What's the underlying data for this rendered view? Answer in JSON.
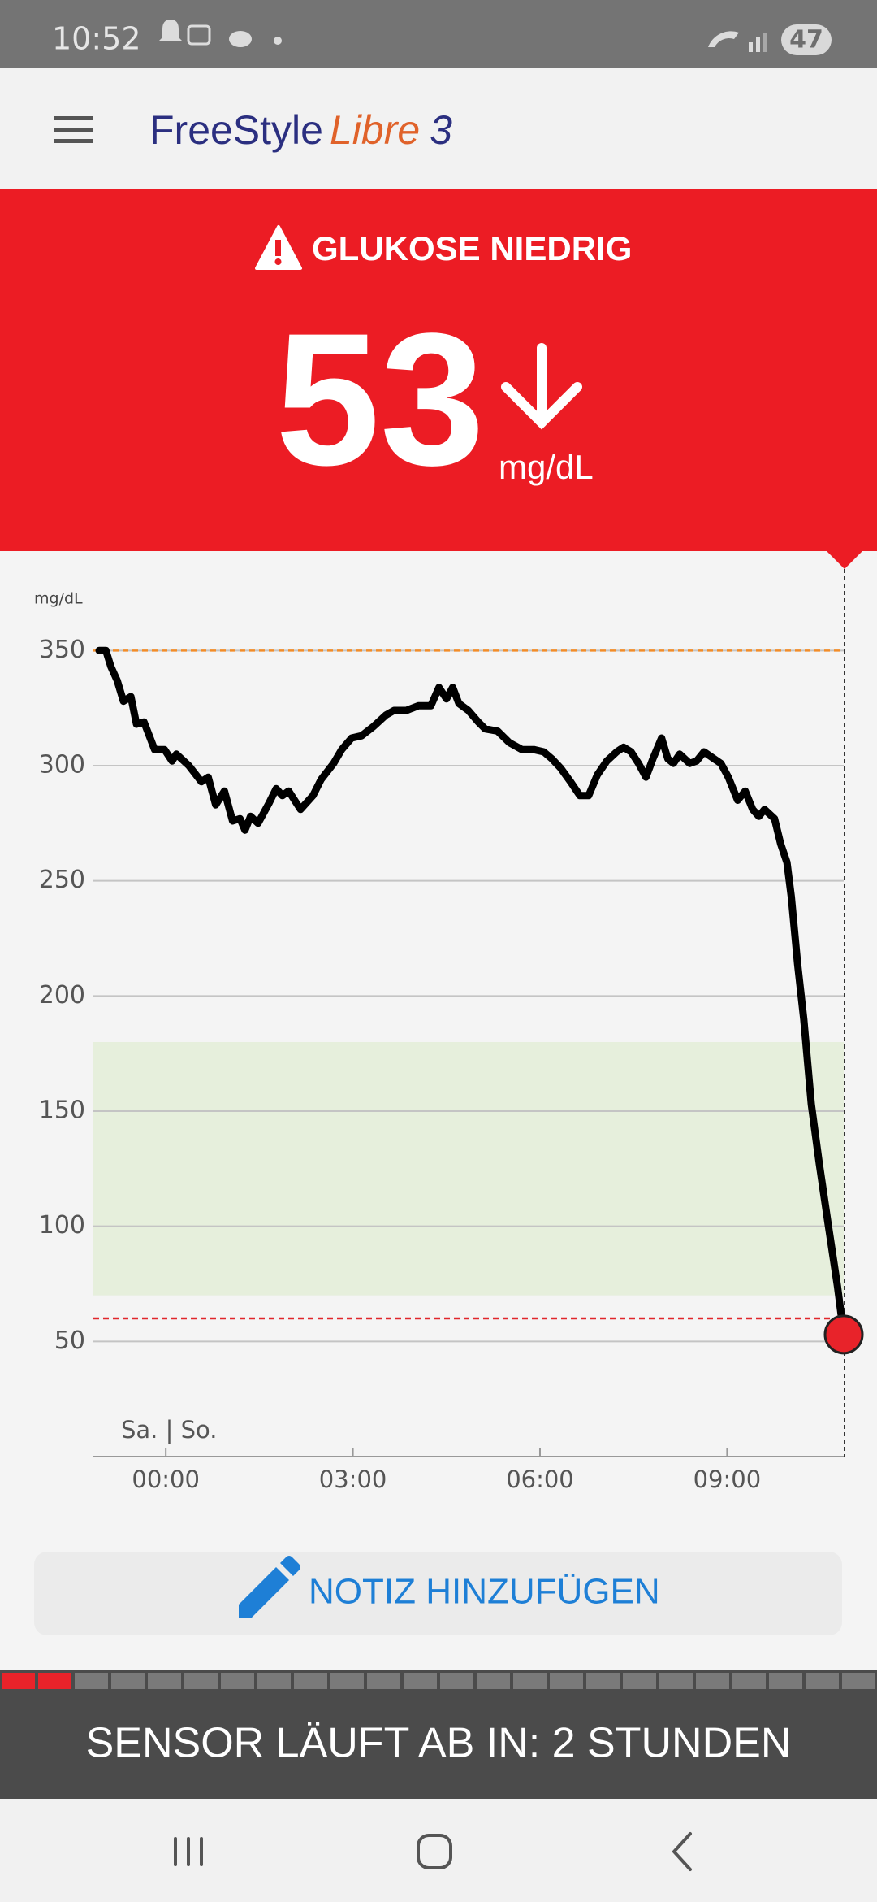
{
  "status_bar": {
    "time": "10:52",
    "battery": "47"
  },
  "header": {
    "brand": "FreeStyle",
    "product": "Libre",
    "version": "3"
  },
  "alert": {
    "title": "GLUKOSE NIEDRIG",
    "value": 53,
    "unit": "mg/dL"
  },
  "chart_data": {
    "type": "line",
    "y_label": "mg/dL",
    "day_label": "Sa. | So.",
    "x": [
      -1.07,
      -0.96,
      -0.88,
      -0.78,
      -0.68,
      -0.56,
      -0.47,
      -0.35,
      -0.18,
      -0.02,
      0.1,
      0.17,
      0.37,
      0.57,
      0.68,
      0.8,
      0.94,
      1.07,
      1.19,
      1.27,
      1.36,
      1.48,
      1.66,
      1.77,
      1.87,
      1.97,
      2.16,
      2.36,
      2.49,
      2.69,
      2.82,
      2.98,
      3.14,
      3.33,
      3.53,
      3.66,
      3.86,
      4.05,
      4.25,
      4.38,
      4.5,
      4.6,
      4.7,
      4.85,
      5.01,
      5.12,
      5.32,
      5.51,
      5.71,
      5.9,
      6.06,
      6.19,
      6.33,
      6.49,
      6.64,
      6.78,
      6.92,
      7.07,
      7.23,
      7.34,
      7.46,
      7.58,
      7.7,
      7.81,
      7.95,
      8.05,
      8.14,
      8.24,
      8.4,
      8.51,
      8.63,
      8.79,
      8.9,
      9.02,
      9.17,
      9.29,
      9.41,
      9.51,
      9.6,
      9.76,
      9.86,
      9.96,
      10.03,
      10.13,
      10.23,
      10.35,
      10.48,
      10.62,
      10.77,
      10.87
    ],
    "series": [
      {
        "color": "#000000",
        "values": [
          350,
          350,
          343,
          337,
          328,
          330,
          318,
          319,
          307,
          307,
          302,
          305,
          300,
          293,
          295,
          283,
          289,
          276,
          277,
          272,
          278,
          275,
          284,
          290,
          287,
          289,
          281,
          287,
          294,
          301,
          307,
          312,
          313,
          317,
          322,
          324,
          324,
          326,
          326,
          334,
          329,
          334,
          327,
          324,
          319,
          316,
          315,
          310,
          307,
          307,
          306,
          303,
          299,
          293,
          287,
          287,
          296,
          302,
          306,
          308,
          306,
          301,
          295,
          303,
          312,
          303,
          301,
          305,
          301,
          302,
          306,
          303,
          301,
          295,
          285,
          289,
          281,
          278,
          281,
          277,
          266,
          258,
          243,
          214,
          190,
          153,
          127,
          101,
          74,
          53
        ]
      }
    ],
    "xlim": [
      -1.07,
      10.87
    ],
    "xticks": [
      {
        "value": 0,
        "label": "00:00"
      },
      {
        "value": 3,
        "label": "03:00"
      },
      {
        "value": 6,
        "label": "06:00"
      },
      {
        "value": 9,
        "label": "09:00"
      }
    ],
    "ylim": [
      0,
      360
    ],
    "yticks": [
      50,
      100,
      150,
      200,
      250,
      300,
      350
    ],
    "grid": true,
    "high_line": 350,
    "high_color": "#f28c28",
    "low_line": 60,
    "low_color": "#e0262b",
    "target_range": [
      70,
      180
    ],
    "target_color": "#e6efdc",
    "current_color": "#e8232a"
  },
  "note_button": {
    "label": "NOTIZ HINZUFÜGEN"
  },
  "sensor": {
    "segments": 24,
    "segments_elapsed": 2,
    "message": "SENSOR LÄUFT AB IN: 2 STUNDEN"
  }
}
